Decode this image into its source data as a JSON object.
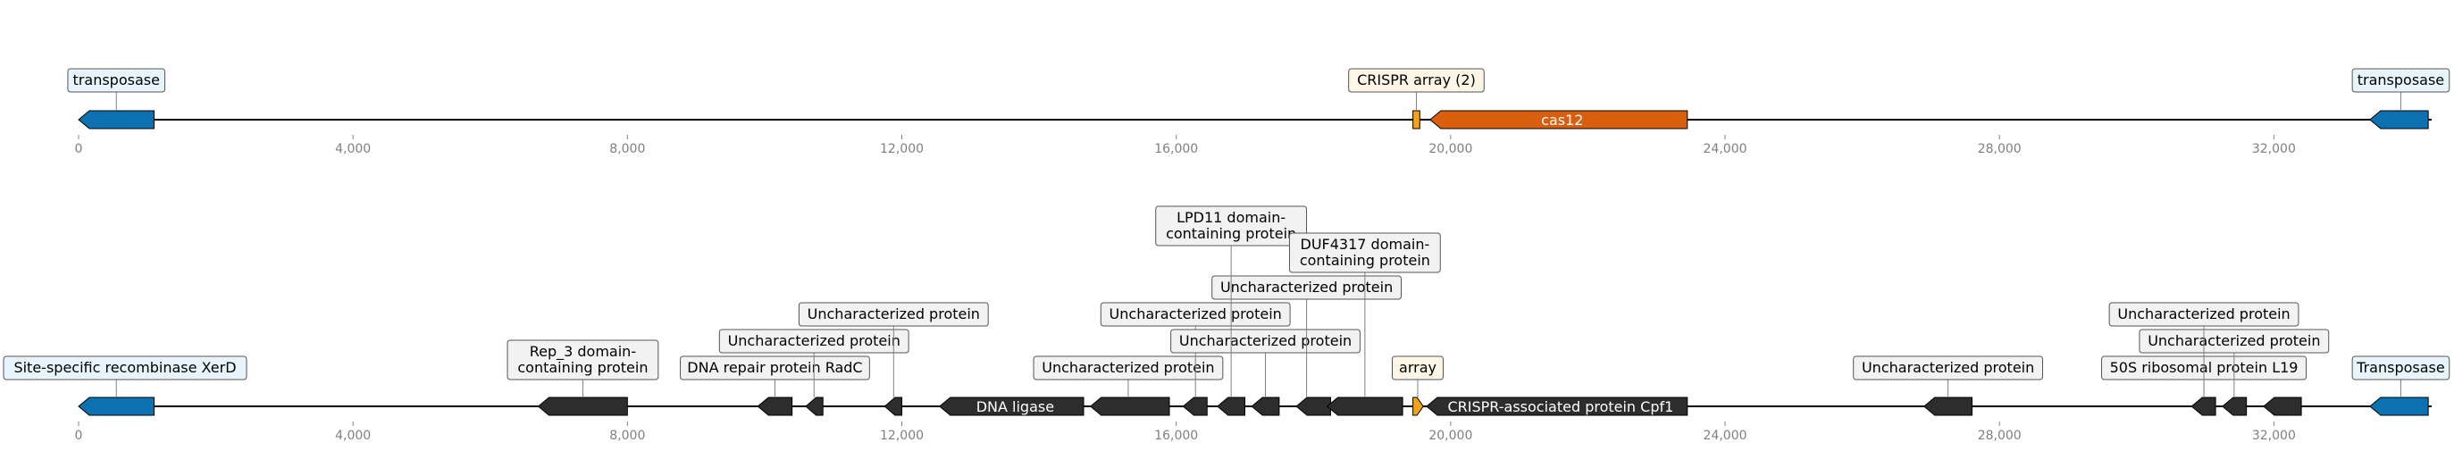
{
  "colors": {
    "transposase": "#0b71b0",
    "crispr_array": "#f2a21b",
    "cas": "#d95f0e",
    "other": "#2d2d2d",
    "label_box_blue": "#e8f4fb",
    "label_box_orange": "#fdf5e6",
    "label_box_gray": "#f2f2f2",
    "axis": "#808080",
    "tick_text": "#808080"
  },
  "axis": {
    "min": 0,
    "max": 34300,
    "ticks": [
      "0",
      "4,000",
      "8,000",
      "12,000",
      "16,000",
      "20,000",
      "24,000",
      "28,000",
      "32,000"
    ],
    "tick_values": [
      0,
      4000,
      8000,
      12000,
      16000,
      20000,
      24000,
      28000,
      32000
    ]
  },
  "tracks": [
    {
      "id": "top",
      "genes": [
        {
          "start": 0,
          "end": 1100,
          "strand": -1,
          "type": "transposase"
        },
        {
          "start": 19450,
          "end": 19550,
          "strand": 0,
          "type": "crispr_array"
        },
        {
          "start": 19700,
          "end": 23450,
          "strand": -1,
          "type": "cas",
          "inner_text": "cas12"
        },
        {
          "start": 33400,
          "end": 34250,
          "strand": -1,
          "type": "transposase"
        }
      ],
      "labels": [
        {
          "text": [
            "transposase"
          ],
          "pos": 550,
          "level": 0,
          "box": "label_box_blue"
        },
        {
          "text": [
            "CRISPR array (2)"
          ],
          "pos": 19500,
          "level": 0,
          "box": "label_box_orange"
        },
        {
          "text": [
            "transposase"
          ],
          "pos": 33850,
          "level": 0,
          "box": "label_box_blue"
        }
      ]
    },
    {
      "id": "bottom",
      "genes": [
        {
          "start": 0,
          "end": 1100,
          "strand": -1,
          "type": "transposase"
        },
        {
          "start": 6700,
          "end": 8000,
          "strand": -1,
          "type": "other"
        },
        {
          "start": 9900,
          "end": 10400,
          "strand": -1,
          "type": "other"
        },
        {
          "start": 10600,
          "end": 10850,
          "strand": -1,
          "type": "other"
        },
        {
          "start": 11750,
          "end": 12000,
          "strand": -1,
          "type": "other"
        },
        {
          "start": 12550,
          "end": 14650,
          "strand": -1,
          "type": "other",
          "inner_text": "DNA ligase"
        },
        {
          "start": 14750,
          "end": 15900,
          "strand": -1,
          "type": "other"
        },
        {
          "start": 16100,
          "end": 16450,
          "strand": -1,
          "type": "other"
        },
        {
          "start": 16600,
          "end": 17000,
          "strand": -1,
          "type": "other"
        },
        {
          "start": 17100,
          "end": 17500,
          "strand": -1,
          "type": "other"
        },
        {
          "start": 17750,
          "end": 18250,
          "strand": -1,
          "type": "other"
        },
        {
          "start": 18200,
          "end": 19300,
          "strand": -1,
          "type": "other"
        },
        {
          "start": 19450,
          "end": 19600,
          "strand": 1,
          "type": "crispr_array"
        },
        {
          "start": 19650,
          "end": 23450,
          "strand": -1,
          "type": "other",
          "inner_text": "CRISPR-associated protein Cpf1"
        },
        {
          "start": 26900,
          "end": 27600,
          "strand": -1,
          "type": "other"
        },
        {
          "start": 30800,
          "end": 31150,
          "strand": -1,
          "type": "other"
        },
        {
          "start": 31250,
          "end": 31600,
          "strand": -1,
          "type": "other"
        },
        {
          "start": 31850,
          "end": 32400,
          "strand": -1,
          "type": "other"
        },
        {
          "start": 33400,
          "end": 34250,
          "strand": -1,
          "type": "transposase"
        }
      ],
      "labels": [
        {
          "text": [
            "Site-specific recombinase XerD"
          ],
          "pos": 550,
          "level": 0,
          "box": "label_box_blue"
        },
        {
          "text": [
            "Rep_3 domain-",
            "containing protein"
          ],
          "pos": 7350,
          "level": 0,
          "box": "label_box_gray"
        },
        {
          "text": [
            "DNA repair protein RadC"
          ],
          "pos": 10150,
          "level": 0,
          "box": "label_box_gray"
        },
        {
          "text": [
            "Uncharacterized protein"
          ],
          "pos": 10720,
          "level": 1,
          "box": "label_box_gray"
        },
        {
          "text": [
            "Uncharacterized protein"
          ],
          "pos": 11880,
          "level": 2,
          "box": "label_box_gray"
        },
        {
          "text": [
            "Uncharacterized protein"
          ],
          "pos": 15300,
          "level": 0,
          "box": "label_box_gray"
        },
        {
          "text": [
            "Uncharacterized protein"
          ],
          "pos": 16280,
          "level": 2,
          "box": "label_box_gray"
        },
        {
          "text": [
            "Uncharacterized protein"
          ],
          "pos": 17300,
          "level": 1,
          "box": "label_box_gray"
        },
        {
          "text": [
            "Uncharacterized protein"
          ],
          "pos": 17900,
          "level": 3,
          "box": "label_box_gray"
        },
        {
          "text": [
            "LPD11 domain-",
            "containing protein"
          ],
          "pos": 16800,
          "level": 5,
          "box": "label_box_gray"
        },
        {
          "text": [
            "DUF4317 domain-",
            "containing protein"
          ],
          "pos": 18750,
          "level": 4,
          "box": "label_box_gray"
        },
        {
          "text": [
            "array"
          ],
          "pos": 19520,
          "level": 0,
          "box": "label_box_orange"
        },
        {
          "text": [
            "Uncharacterized protein"
          ],
          "pos": 27250,
          "level": 0,
          "box": "label_box_gray"
        },
        {
          "text": [
            "50S ribosomal protein L19"
          ],
          "pos": 30980,
          "level": 0,
          "box": "label_box_gray"
        },
        {
          "text": [
            "Uncharacterized protein"
          ],
          "pos": 31420,
          "level": 1,
          "box": "label_box_gray"
        },
        {
          "text": [
            "Uncharacterized protein"
          ],
          "pos": 30980,
          "level": 2,
          "box": "label_box_gray"
        },
        {
          "text": [
            "Transposase"
          ],
          "pos": 33850,
          "level": 0,
          "box": "label_box_blue"
        }
      ]
    }
  ]
}
